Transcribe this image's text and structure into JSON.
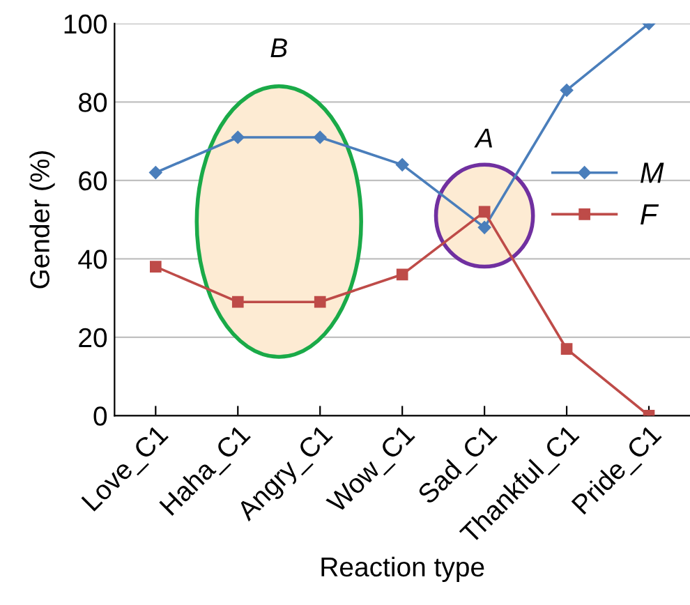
{
  "chart_data": {
    "type": "line",
    "xlabel": "Reaction type",
    "ylabel": "Gender (%)",
    "categories": [
      "Love_C1",
      "Haha_C1",
      "Angry_C1",
      "Wow_C1",
      "Sad_C1",
      "Thankful_C1",
      "Pride_C1"
    ],
    "series": [
      {
        "name": "M",
        "color": "#4a7ebb",
        "marker": "diamond",
        "values": [
          62,
          71,
          71,
          64,
          48,
          83,
          100
        ]
      },
      {
        "name": "F",
        "color": "#be4b48",
        "marker": "square",
        "values": [
          38,
          29,
          29,
          36,
          52,
          17,
          0
        ]
      }
    ],
    "ylim": [
      0,
      100
    ],
    "yticks": [
      0,
      20,
      40,
      60,
      80,
      100
    ],
    "grid": "y",
    "legend": "right",
    "annotations": [
      "B",
      "A"
    ]
  }
}
